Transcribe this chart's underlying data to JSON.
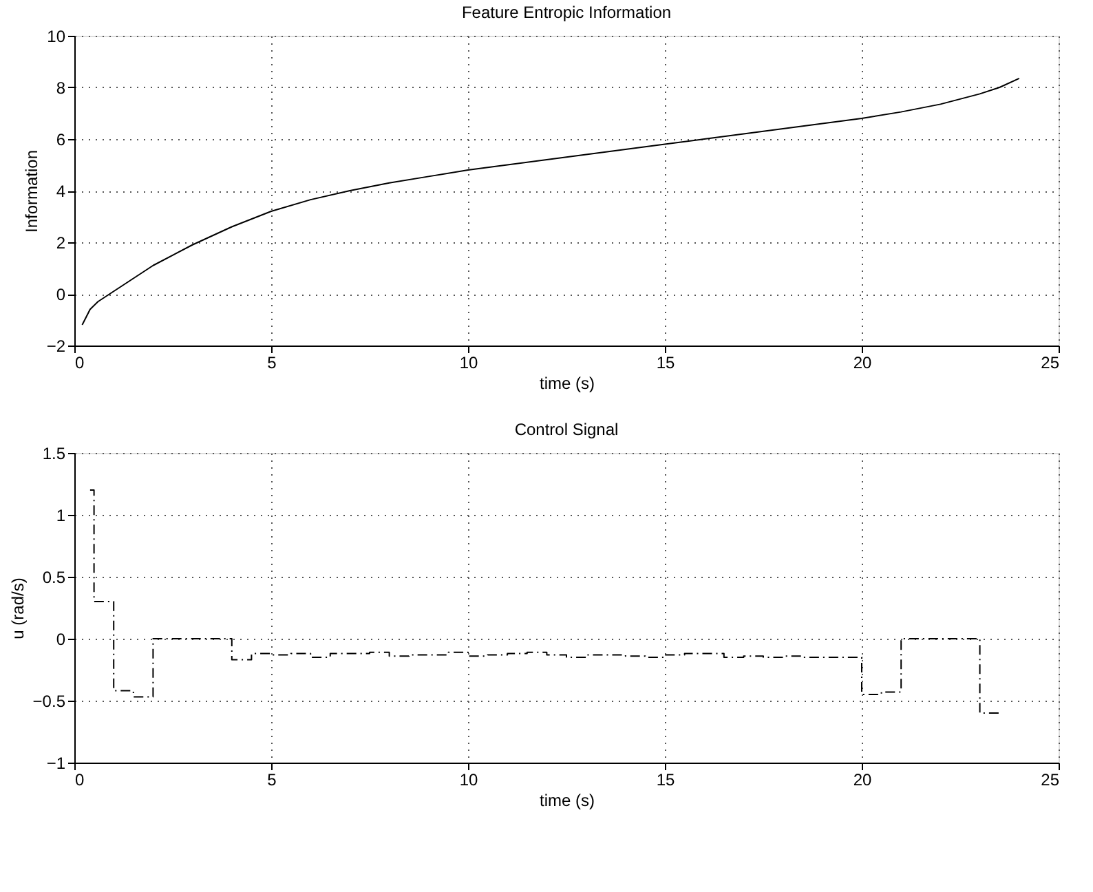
{
  "chart_data": [
    {
      "type": "line",
      "title": "Feature Entropic Information",
      "xlabel": "time (s)",
      "ylabel": "Information",
      "xlim": [
        0,
        25
      ],
      "xticks": [
        0,
        5,
        10,
        15,
        20,
        25
      ],
      "ylim": [
        -2,
        10
      ],
      "yticks": [
        -2,
        0,
        2,
        4,
        6,
        8,
        10
      ],
      "grid": true,
      "line_style": "solid",
      "series": [
        {
          "color": "#000000",
          "x": [
            0.2,
            0.4,
            0.6,
            1,
            1.5,
            2,
            3,
            4,
            5,
            6,
            7,
            8,
            9,
            10,
            11,
            12,
            13,
            14,
            15,
            16,
            17,
            18,
            19,
            20,
            21,
            22,
            23,
            23.5,
            24
          ],
          "values": [
            -1.2,
            -0.6,
            -0.3,
            0.1,
            0.6,
            1.1,
            1.9,
            2.6,
            3.2,
            3.65,
            4.0,
            4.3,
            4.55,
            4.8,
            5.0,
            5.2,
            5.4,
            5.6,
            5.8,
            6.0,
            6.2,
            6.4,
            6.6,
            6.8,
            7.05,
            7.35,
            7.75,
            8.0,
            8.35
          ]
        }
      ]
    },
    {
      "type": "step",
      "title": "Control Signal",
      "xlabel": "time (s)",
      "ylabel": "u (rad/s)",
      "xlim": [
        0,
        25
      ],
      "xticks": [
        0,
        5,
        10,
        15,
        20,
        25
      ],
      "ylim": [
        -1,
        1.5
      ],
      "yticks": [
        -1,
        -0.5,
        0,
        0.5,
        1,
        1.5
      ],
      "grid": true,
      "line_style": "dashed",
      "series": [
        {
          "color": "#000000",
          "x": [
            0.4,
            0.5,
            1,
            1.5,
            2,
            3,
            4,
            4.5,
            5,
            5.5,
            6,
            6.5,
            7,
            7.5,
            8,
            8.5,
            9,
            9.5,
            10,
            10.5,
            11,
            11.5,
            12,
            12.5,
            13,
            13.5,
            14,
            14.5,
            15,
            15.5,
            16,
            16.5,
            17,
            17.5,
            18,
            18.5,
            19,
            19.5,
            20,
            20.5,
            21,
            22,
            23,
            23.5
          ],
          "values": [
            1.2,
            0.3,
            -0.42,
            -0.47,
            0.0,
            0.0,
            -0.17,
            -0.12,
            -0.13,
            -0.12,
            -0.15,
            -0.12,
            -0.12,
            -0.11,
            -0.14,
            -0.13,
            -0.13,
            -0.11,
            -0.14,
            -0.13,
            -0.12,
            -0.11,
            -0.13,
            -0.15,
            -0.13,
            -0.13,
            -0.14,
            -0.15,
            -0.13,
            -0.12,
            -0.12,
            -0.15,
            -0.14,
            -0.15,
            -0.14,
            -0.15,
            -0.15,
            -0.15,
            -0.45,
            -0.43,
            0.0,
            0.0,
            -0.6,
            -0.6
          ]
        }
      ]
    }
  ]
}
